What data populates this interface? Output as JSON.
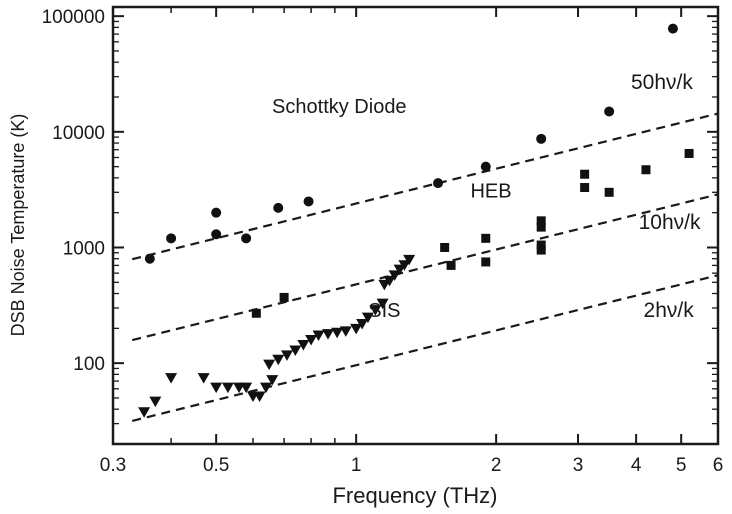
{
  "chart_data": {
    "type": "scatter",
    "xscale": "log",
    "yscale": "log",
    "xlim": [
      0.3,
      6
    ],
    "ylim": [
      20,
      120000
    ],
    "xlabel": "Frequency (THz)",
    "ylabel": "DSB Noise Temperature (K)",
    "xticks": [
      {
        "value": 0.3,
        "label": "0.3"
      },
      {
        "value": 0.5,
        "label": "0.5"
      },
      {
        "value": 1,
        "label": "1"
      },
      {
        "value": 2,
        "label": "2"
      },
      {
        "value": 3,
        "label": "3"
      },
      {
        "value": 4,
        "label": "4"
      },
      {
        "value": 5,
        "label": "5"
      },
      {
        "value": 6,
        "label": "6"
      }
    ],
    "yticks": [
      {
        "value": 100,
        "label": "100"
      },
      {
        "value": 1000,
        "label": "1000"
      },
      {
        "value": 10000,
        "label": "10000"
      },
      {
        "value": 100000,
        "label": "100000"
      }
    ],
    "grid": false,
    "series": [
      {
        "name": "Schottky Diode",
        "marker": "circle",
        "points": [
          [
            0.36,
            800
          ],
          [
            0.4,
            1200
          ],
          [
            0.5,
            2000
          ],
          [
            0.5,
            1300
          ],
          [
            0.58,
            1200
          ],
          [
            0.68,
            2200
          ],
          [
            0.79,
            2500
          ],
          [
            1.5,
            3600
          ],
          [
            1.9,
            5000
          ],
          [
            2.5,
            8700
          ],
          [
            3.5,
            15000
          ],
          [
            4.8,
            78000
          ]
        ]
      },
      {
        "name": "HEB",
        "marker": "square",
        "points": [
          [
            0.61,
            270
          ],
          [
            0.7,
            370
          ],
          [
            1.55,
            1000
          ],
          [
            1.6,
            700
          ],
          [
            1.9,
            1200
          ],
          [
            1.9,
            750
          ],
          [
            2.5,
            1700
          ],
          [
            2.5,
            1500
          ],
          [
            2.5,
            1050
          ],
          [
            2.5,
            950
          ],
          [
            3.1,
            4300
          ],
          [
            3.1,
            3300
          ],
          [
            3.5,
            3000
          ],
          [
            4.2,
            4700
          ],
          [
            5.2,
            6500
          ]
        ]
      },
      {
        "name": "SIS",
        "marker": "triangle-down",
        "points": [
          [
            0.35,
            38
          ],
          [
            0.37,
            47
          ],
          [
            0.4,
            75
          ],
          [
            0.47,
            75
          ],
          [
            0.5,
            62
          ],
          [
            0.53,
            62
          ],
          [
            0.56,
            62
          ],
          [
            0.58,
            62
          ],
          [
            0.6,
            52
          ],
          [
            0.62,
            52
          ],
          [
            0.64,
            62
          ],
          [
            0.66,
            72
          ],
          [
            0.65,
            98
          ],
          [
            0.68,
            108
          ],
          [
            0.71,
            118
          ],
          [
            0.74,
            130
          ],
          [
            0.77,
            145
          ],
          [
            0.8,
            160
          ],
          [
            0.83,
            175
          ],
          [
            0.87,
            180
          ],
          [
            0.91,
            185
          ],
          [
            0.95,
            190
          ],
          [
            1.0,
            200
          ],
          [
            1.03,
            220
          ],
          [
            1.06,
            250
          ],
          [
            1.1,
            290
          ],
          [
            1.14,
            330
          ],
          [
            1.15,
            480
          ],
          [
            1.18,
            520
          ],
          [
            1.21,
            580
          ],
          [
            1.24,
            650
          ],
          [
            1.27,
            710
          ],
          [
            1.3,
            790
          ]
        ]
      }
    ],
    "reference_lines": [
      {
        "label": "50hν/k",
        "k": 50,
        "style": "dashed"
      },
      {
        "label": "10hν/k",
        "k": 10,
        "style": "dashed"
      },
      {
        "label": "2hν/k",
        "k": 2,
        "style": "dashed"
      }
    ],
    "annotations": [
      {
        "text": "Schottky Diode",
        "x": 0.92,
        "y": 14500
      },
      {
        "text": "HEB",
        "x": 1.95,
        "y": 2700
      },
      {
        "text": "SIS",
        "x": 1.15,
        "y": 250
      }
    ]
  }
}
